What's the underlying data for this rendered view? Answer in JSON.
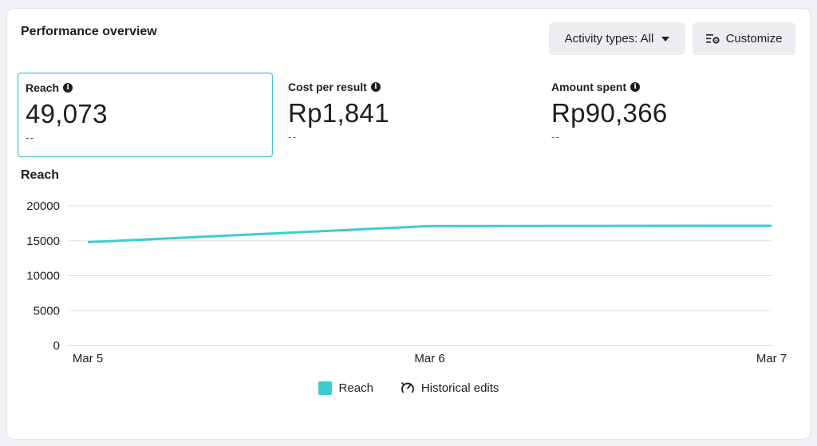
{
  "card": {
    "title": "Performance overview",
    "activity_button": "Activity types: All",
    "customize_button": "Customize"
  },
  "metrics": [
    {
      "label": "Reach",
      "value": "49,073",
      "delta": "--",
      "selected": true
    },
    {
      "label": "Cost per result",
      "value": "Rp1,841",
      "delta": "--",
      "selected": false
    },
    {
      "label": "Amount spent",
      "value": "Rp90,366",
      "delta": "--",
      "selected": false
    }
  ],
  "chart_title": "Reach",
  "legend": {
    "reach": "Reach",
    "historical": "Historical edits"
  },
  "colors": {
    "accent": "#3cccd0",
    "selected_border": "#45bfd0",
    "gridline": "#dcdfe3"
  },
  "icons": {
    "info": "info-icon",
    "caret": "caret-down-icon",
    "customize": "sliders-gear-icon",
    "historical": "gauge-icon"
  },
  "chart_data": {
    "type": "line",
    "title": "Reach",
    "x": [
      "Mar 5",
      "Mar 6",
      "Mar 7"
    ],
    "series": [
      {
        "name": "Reach",
        "values": [
          14800,
          17100,
          17150
        ]
      }
    ],
    "ylim": [
      0,
      20000
    ],
    "yticks": [
      0,
      5000,
      10000,
      15000,
      20000
    ],
    "grid": true,
    "legend": "bottom"
  }
}
